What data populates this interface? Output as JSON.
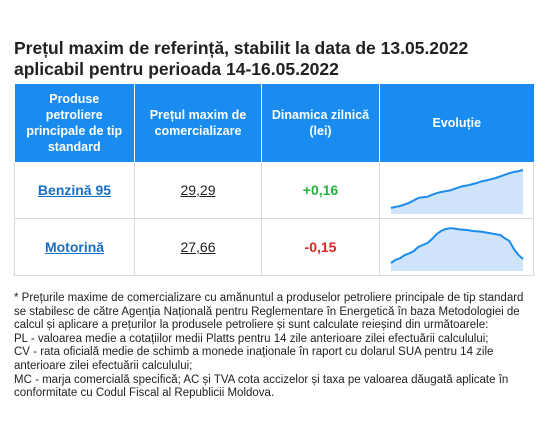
{
  "title": "Prețul maxim de referință, stabilit la data de 13.05.2022 aplicabil pentru perioada 14-16.05.2022",
  "table": {
    "headers": [
      "Produse petroliere principale de tip standard",
      "Prețul maxim de comercializare",
      "Dinamica zilnică (lei)",
      "Evoluție"
    ],
    "rows": [
      {
        "product": "Benzină 95",
        "price": "29,29",
        "change": "+0,16",
        "trend": "up",
        "spark": [
          0.05,
          0.08,
          0.1,
          0.14,
          0.18,
          0.24,
          0.3,
          0.32,
          0.33,
          0.38,
          0.42,
          0.45,
          0.47,
          0.49,
          0.53,
          0.57,
          0.6,
          0.62,
          0.65,
          0.68,
          0.72,
          0.74,
          0.77,
          0.8,
          0.84,
          0.88,
          0.92,
          0.95,
          0.97,
          1.0
        ]
      },
      {
        "product": "Motorină",
        "price": "27,66",
        "change": "-0,15",
        "trend": "down",
        "spark": [
          0.1,
          0.18,
          0.22,
          0.3,
          0.34,
          0.4,
          0.5,
          0.55,
          0.6,
          0.7,
          0.82,
          0.9,
          0.95,
          0.97,
          0.96,
          0.94,
          0.93,
          0.92,
          0.9,
          0.89,
          0.88,
          0.86,
          0.84,
          0.82,
          0.8,
          0.72,
          0.65,
          0.45,
          0.3,
          0.2
        ]
      }
    ],
    "spark_color": "#1a8cf0",
    "spark_fill": "#cfe3fa"
  },
  "notes": [
    "* Prețurile maxime de comercializare cu amănuntul a produselor petroliere principale de tip standard se stabilesc de către Agenția Națională pentru Reglementare în Energetică în baza Metodologiei de calcul și aplicare a prețurilor la produsele petroliere și sunt calculate reieșind din următoarele:",
    "PL - valoarea medie a cotațiilor medii Platts pentru 14 zile anterioare zilei efectuării calculului;",
    "CV - rata oficială medie de schimb a monede inaționale în raport cu dolarul SUA pentru 14 zile anterioare zilei efectuării calculului;",
    "MC - marja comercială specifică; AC și TVA cota accizelor și taxa pe valoarea dăugată aplicate în conformitate cu Codul Fiscal al Republicii Moldova."
  ]
}
